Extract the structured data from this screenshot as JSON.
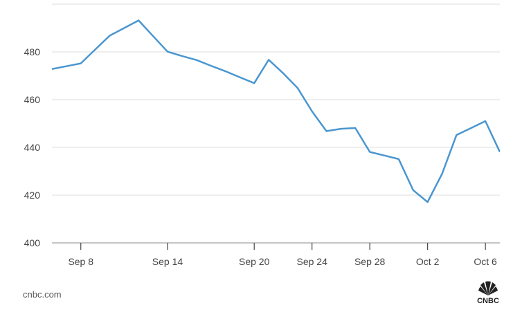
{
  "chart_data": {
    "type": "line",
    "title": "",
    "xlabel": "",
    "ylabel": "",
    "ylim": [
      400,
      500
    ],
    "yticks": [
      400,
      420,
      440,
      460,
      480
    ],
    "xlim": [
      "2017-09-06",
      "2017-10-07"
    ],
    "xtick_labels": [
      "Sep 8",
      "Sep 14",
      "Sep 20",
      "Sep 24",
      "Sep 28",
      "Oct 2",
      "Oct 6"
    ],
    "xtick_dates": [
      "2017-09-08",
      "2017-09-14",
      "2017-09-20",
      "2017-09-24",
      "2017-09-28",
      "2017-10-02",
      "2017-10-06"
    ],
    "grid": "horizontal",
    "series": [
      {
        "color": "#4a96d0",
        "x": [
          "2017-09-06",
          "2017-09-07",
          "2017-09-08",
          "2017-09-09",
          "2017-09-10",
          "2017-09-11",
          "2017-09-12",
          "2017-09-13",
          "2017-09-14",
          "2017-09-15",
          "2017-09-16",
          "2017-09-17",
          "2017-09-18",
          "2017-09-19",
          "2017-09-20",
          "2017-09-21",
          "2017-09-22",
          "2017-09-23",
          "2017-09-24",
          "2017-09-25",
          "2017-09-26",
          "2017-09-27",
          "2017-09-28",
          "2017-09-29",
          "2017-09-30",
          "2017-10-01",
          "2017-10-02",
          "2017-10-03",
          "2017-10-04",
          "2017-10-05",
          "2017-10-06",
          "2017-10-07"
        ],
        "values": [
          472.8,
          474.0,
          475.2,
          481.0,
          486.8,
          490.0,
          493.2,
          486.6,
          480.1,
          478.3,
          476.6,
          474.2,
          471.9,
          469.4,
          466.9,
          476.7,
          471.1,
          464.9,
          455.1,
          446.8,
          447.8,
          448.1,
          438.1,
          436.6,
          435.1,
          422.1,
          417.1,
          428.9,
          445.2,
          448.1,
          451.0,
          438.1
        ]
      }
    ]
  },
  "source": "cnbc.com",
  "logo_text": "CNBC"
}
